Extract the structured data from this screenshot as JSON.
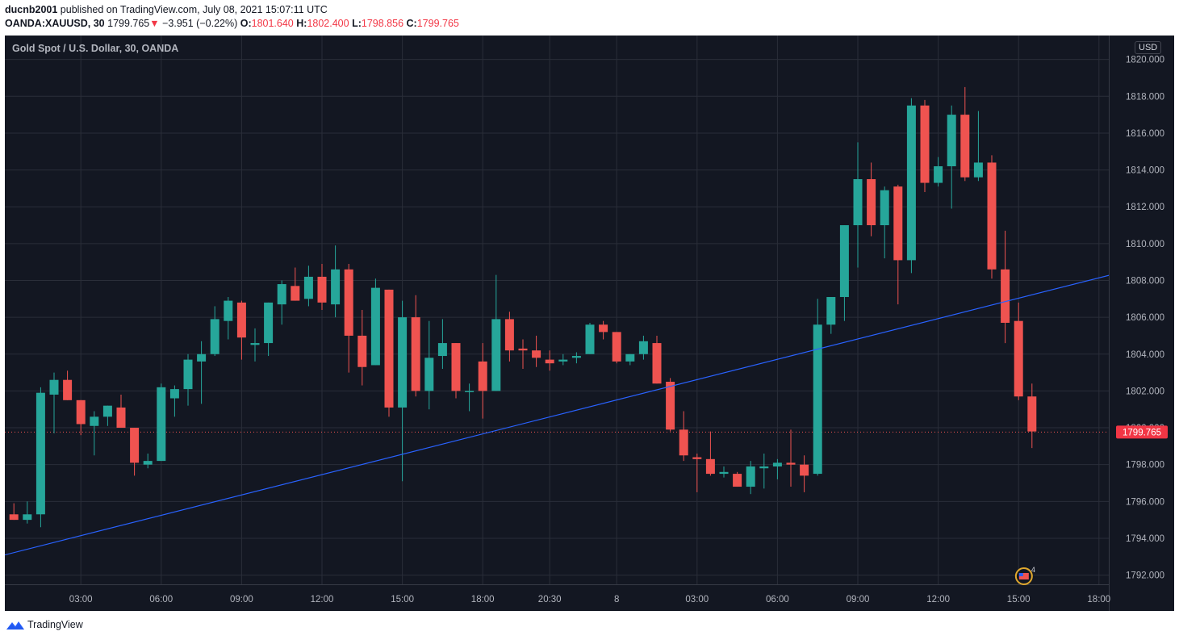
{
  "header": {
    "username": "ducnb2001",
    "published_text": "published on TradingView.com, July 08, 2021 15:07:11 UTC",
    "symbol": "OANDA:XAUUSD, 30",
    "last": "1799.765",
    "change_arrow": "▼",
    "change": "−3.951 (−0.22%)",
    "o_label": "O:",
    "o_value": "1801.640",
    "h_label": "H:",
    "h_value": "1802.400",
    "l_label": "L:",
    "l_value": "1798.856",
    "c_label": "C:",
    "c_value": "1799.765"
  },
  "footer": {
    "brand": "TradingView",
    "logo_icon": "tradingview-logo-icon"
  },
  "chart_data": {
    "type": "candlestick",
    "title": "Gold Spot / U.S. Dollar, 30, OANDA",
    "currency": "USD",
    "ylim": [
      1791.5,
      1821.3
    ],
    "y_ticks": [
      "1792.000",
      "1794.000",
      "1796.000",
      "1798.000",
      "1800.000",
      "1802.000",
      "1804.000",
      "1806.000",
      "1808.000",
      "1810.000",
      "1812.000",
      "1814.000",
      "1816.000",
      "1818.000",
      "1820.000"
    ],
    "y_tick_values": [
      1792,
      1794,
      1796,
      1798,
      1800,
      1802,
      1804,
      1806,
      1808,
      1810,
      1812,
      1814,
      1816,
      1818,
      1820
    ],
    "x_tick_labels": [
      "03:00",
      "06:00",
      "09:00",
      "12:00",
      "15:00",
      "18:00",
      "20:30",
      "8",
      "03:00",
      "06:00",
      "09:00",
      "12:00",
      "15:00",
      "18:00"
    ],
    "x_tick_bar_index": [
      5,
      11,
      17,
      23,
      29,
      35,
      40,
      45,
      51,
      57,
      63,
      69,
      75,
      81
    ],
    "last_price": 1799.765,
    "last_price_label": "1799.765",
    "candles": [
      {
        "o": 1795.3,
        "h": 1795.9,
        "l": 1795.0,
        "c": 1795.0
      },
      {
        "o": 1795.0,
        "h": 1796.0,
        "l": 1794.8,
        "c": 1795.3
      },
      {
        "o": 1795.3,
        "h": 1802.2,
        "l": 1794.6,
        "c": 1801.9
      },
      {
        "o": 1801.8,
        "h": 1803.0,
        "l": 1799.7,
        "c": 1802.6
      },
      {
        "o": 1802.6,
        "h": 1803.1,
        "l": 1801.5,
        "c": 1801.5
      },
      {
        "o": 1801.5,
        "h": 1801.5,
        "l": 1799.6,
        "c": 1800.2
      },
      {
        "o": 1800.1,
        "h": 1800.9,
        "l": 1798.5,
        "c": 1800.6
      },
      {
        "o": 1800.6,
        "h": 1801.2,
        "l": 1800.1,
        "c": 1801.2
      },
      {
        "o": 1801.1,
        "h": 1801.8,
        "l": 1800.2,
        "c": 1800.0
      },
      {
        "o": 1800.0,
        "h": 1800.0,
        "l": 1797.4,
        "c": 1798.1
      },
      {
        "o": 1798.0,
        "h": 1798.6,
        "l": 1797.8,
        "c": 1798.2
      },
      {
        "o": 1798.2,
        "h": 1802.4,
        "l": 1798.2,
        "c": 1802.2
      },
      {
        "o": 1801.6,
        "h": 1802.3,
        "l": 1800.6,
        "c": 1802.1
      },
      {
        "o": 1802.1,
        "h": 1804.0,
        "l": 1801.2,
        "c": 1803.7
      },
      {
        "o": 1803.6,
        "h": 1804.7,
        "l": 1801.3,
        "c": 1804.0
      },
      {
        "o": 1804.0,
        "h": 1806.6,
        "l": 1803.9,
        "c": 1805.9
      },
      {
        "o": 1805.8,
        "h": 1807.1,
        "l": 1804.8,
        "c": 1806.9
      },
      {
        "o": 1806.8,
        "h": 1806.9,
        "l": 1803.7,
        "c": 1804.9
      },
      {
        "o": 1804.5,
        "h": 1805.4,
        "l": 1803.6,
        "c": 1804.6
      },
      {
        "o": 1804.6,
        "h": 1806.8,
        "l": 1803.9,
        "c": 1806.8
      },
      {
        "o": 1806.7,
        "h": 1808.0,
        "l": 1805.6,
        "c": 1807.8
      },
      {
        "o": 1807.7,
        "h": 1808.7,
        "l": 1806.9,
        "c": 1806.9
      },
      {
        "o": 1807.0,
        "h": 1808.8,
        "l": 1806.6,
        "c": 1808.2
      },
      {
        "o": 1808.2,
        "h": 1808.9,
        "l": 1806.4,
        "c": 1806.8
      },
      {
        "o": 1806.7,
        "h": 1809.9,
        "l": 1806.0,
        "c": 1808.6
      },
      {
        "o": 1808.6,
        "h": 1808.9,
        "l": 1803.0,
        "c": 1805.0
      },
      {
        "o": 1805.0,
        "h": 1806.4,
        "l": 1802.3,
        "c": 1803.3
      },
      {
        "o": 1803.4,
        "h": 1808.1,
        "l": 1803.4,
        "c": 1807.6
      },
      {
        "o": 1807.5,
        "h": 1807.5,
        "l": 1800.6,
        "c": 1801.1
      },
      {
        "o": 1801.1,
        "h": 1806.9,
        "l": 1797.1,
        "c": 1806.0
      },
      {
        "o": 1806.0,
        "h": 1807.2,
        "l": 1801.7,
        "c": 1802.0
      },
      {
        "o": 1802.0,
        "h": 1805.8,
        "l": 1801.0,
        "c": 1803.8
      },
      {
        "o": 1803.9,
        "h": 1805.9,
        "l": 1803.2,
        "c": 1804.6
      },
      {
        "o": 1804.6,
        "h": 1804.6,
        "l": 1801.6,
        "c": 1802.0
      },
      {
        "o": 1802.0,
        "h": 1802.4,
        "l": 1800.9,
        "c": 1802.0
      },
      {
        "o": 1803.6,
        "h": 1804.6,
        "l": 1800.5,
        "c": 1802.0
      },
      {
        "o": 1802.0,
        "h": 1808.3,
        "l": 1802.0,
        "c": 1805.9
      },
      {
        "o": 1805.9,
        "h": 1806.3,
        "l": 1803.6,
        "c": 1804.2
      },
      {
        "o": 1804.3,
        "h": 1804.8,
        "l": 1803.2,
        "c": 1804.2
      },
      {
        "o": 1804.2,
        "h": 1805.0,
        "l": 1803.3,
        "c": 1803.8
      },
      {
        "o": 1803.7,
        "h": 1804.2,
        "l": 1803.1,
        "c": 1803.5
      },
      {
        "o": 1803.6,
        "h": 1804.0,
        "l": 1803.4,
        "c": 1803.7
      },
      {
        "o": 1803.8,
        "h": 1804.1,
        "l": 1803.5,
        "c": 1803.9
      },
      {
        "o": 1804.0,
        "h": 1805.7,
        "l": 1804.0,
        "c": 1805.6
      },
      {
        "o": 1805.6,
        "h": 1805.8,
        "l": 1804.8,
        "c": 1805.2
      },
      {
        "o": 1805.2,
        "h": 1805.2,
        "l": 1803.5,
        "c": 1803.6
      },
      {
        "o": 1803.6,
        "h": 1804.0,
        "l": 1803.4,
        "c": 1804.0
      },
      {
        "o": 1804.0,
        "h": 1805.0,
        "l": 1803.7,
        "c": 1804.7
      },
      {
        "o": 1804.6,
        "h": 1805.0,
        "l": 1802.4,
        "c": 1802.4
      },
      {
        "o": 1802.5,
        "h": 1802.7,
        "l": 1799.8,
        "c": 1799.9
      },
      {
        "o": 1799.9,
        "h": 1800.9,
        "l": 1798.2,
        "c": 1798.5
      },
      {
        "o": 1798.4,
        "h": 1798.6,
        "l": 1796.5,
        "c": 1798.3
      },
      {
        "o": 1798.3,
        "h": 1799.8,
        "l": 1797.4,
        "c": 1797.5
      },
      {
        "o": 1797.5,
        "h": 1797.9,
        "l": 1797.3,
        "c": 1797.6
      },
      {
        "o": 1797.5,
        "h": 1797.6,
        "l": 1796.8,
        "c": 1796.8
      },
      {
        "o": 1796.8,
        "h": 1798.2,
        "l": 1796.4,
        "c": 1797.9
      },
      {
        "o": 1797.8,
        "h": 1798.6,
        "l": 1796.7,
        "c": 1797.9
      },
      {
        "o": 1797.9,
        "h": 1798.3,
        "l": 1797.2,
        "c": 1798.1
      },
      {
        "o": 1798.1,
        "h": 1799.9,
        "l": 1796.8,
        "c": 1798.0
      },
      {
        "o": 1798.0,
        "h": 1798.5,
        "l": 1796.5,
        "c": 1797.4
      },
      {
        "o": 1797.5,
        "h": 1807.0,
        "l": 1797.4,
        "c": 1805.6
      },
      {
        "o": 1805.6,
        "h": 1807.1,
        "l": 1805.1,
        "c": 1807.1
      },
      {
        "o": 1807.1,
        "h": 1811.0,
        "l": 1805.8,
        "c": 1811.0
      },
      {
        "o": 1811.0,
        "h": 1815.5,
        "l": 1808.7,
        "c": 1813.5
      },
      {
        "o": 1813.5,
        "h": 1814.4,
        "l": 1810.4,
        "c": 1811.0
      },
      {
        "o": 1811.0,
        "h": 1813.1,
        "l": 1809.2,
        "c": 1812.9
      },
      {
        "o": 1813.1,
        "h": 1813.2,
        "l": 1806.7,
        "c": 1809.1
      },
      {
        "o": 1809.1,
        "h": 1817.9,
        "l": 1808.4,
        "c": 1817.5
      },
      {
        "o": 1817.5,
        "h": 1817.8,
        "l": 1812.8,
        "c": 1813.3
      },
      {
        "o": 1813.3,
        "h": 1814.7,
        "l": 1813.1,
        "c": 1814.2
      },
      {
        "o": 1814.2,
        "h": 1817.5,
        "l": 1811.9,
        "c": 1817.0
      },
      {
        "o": 1817.0,
        "h": 1818.5,
        "l": 1813.4,
        "c": 1813.6
      },
      {
        "o": 1813.6,
        "h": 1817.2,
        "l": 1813.4,
        "c": 1814.4
      },
      {
        "o": 1814.4,
        "h": 1814.8,
        "l": 1808.1,
        "c": 1808.6
      },
      {
        "o": 1808.6,
        "h": 1810.7,
        "l": 1804.6,
        "c": 1805.7
      },
      {
        "o": 1805.8,
        "h": 1806.8,
        "l": 1801.5,
        "c": 1801.7
      },
      {
        "o": 1801.7,
        "h": 1802.4,
        "l": 1798.9,
        "c": 1799.8
      }
    ],
    "trendline": {
      "from_bar": -1.2,
      "from_price": 1793.0,
      "to_bar": 83.5,
      "to_price": 1808.6
    },
    "colors": {
      "up": "#26a69a",
      "down": "#ef5350",
      "background": "#131722",
      "grid": "#2a2e39",
      "axis_text": "#b2b5be",
      "trendline": "#2962ff",
      "price_label_bg": "#f23645"
    },
    "event_marker": {
      "icon": "us-flag-event-icon",
      "count": "4",
      "bar": 75.4
    }
  }
}
